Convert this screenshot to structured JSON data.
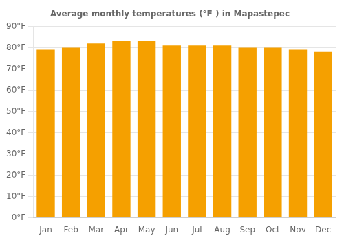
{
  "chart_data": {
    "type": "bar",
    "title": "Average monthly temperatures (°F ) in Mapastepec",
    "categories": [
      "Jan",
      "Feb",
      "Mar",
      "Apr",
      "May",
      "Jun",
      "Jul",
      "Aug",
      "Sep",
      "Oct",
      "Nov",
      "Dec"
    ],
    "values": [
      79,
      80,
      82,
      83,
      83,
      81,
      81,
      81,
      80,
      80,
      79,
      78
    ],
    "color": "#F5A000",
    "ylim": [
      0,
      90
    ],
    "yticks": [
      {
        "value": 0,
        "label": "0°F"
      },
      {
        "value": 10,
        "label": "10°F"
      },
      {
        "value": 20,
        "label": "20°F"
      },
      {
        "value": 30,
        "label": "30°F"
      },
      {
        "value": 40,
        "label": "40°F"
      },
      {
        "value": 50,
        "label": "50°F"
      },
      {
        "value": 60,
        "label": "60°F"
      },
      {
        "value": 70,
        "label": "70°F"
      },
      {
        "value": 80,
        "label": "80°F"
      },
      {
        "value": 90,
        "label": "90°F"
      }
    ],
    "grid": true
  }
}
